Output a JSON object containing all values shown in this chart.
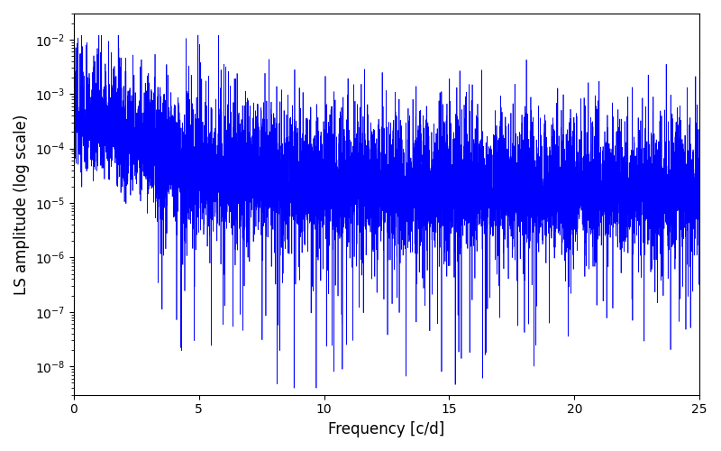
{
  "title": "",
  "xlabel": "Frequency [c/d]",
  "ylabel": "LS amplitude (log scale)",
  "xlim": [
    0,
    25
  ],
  "ylim": [
    3e-09,
    0.03
  ],
  "line_color": "#0000FF",
  "line_width": 0.5,
  "freq_min": 0.0,
  "freq_max": 25.0,
  "n_points": 8000,
  "seed": 7,
  "background_color": "#ffffff",
  "figsize": [
    8.0,
    5.0
  ],
  "dpi": 100
}
